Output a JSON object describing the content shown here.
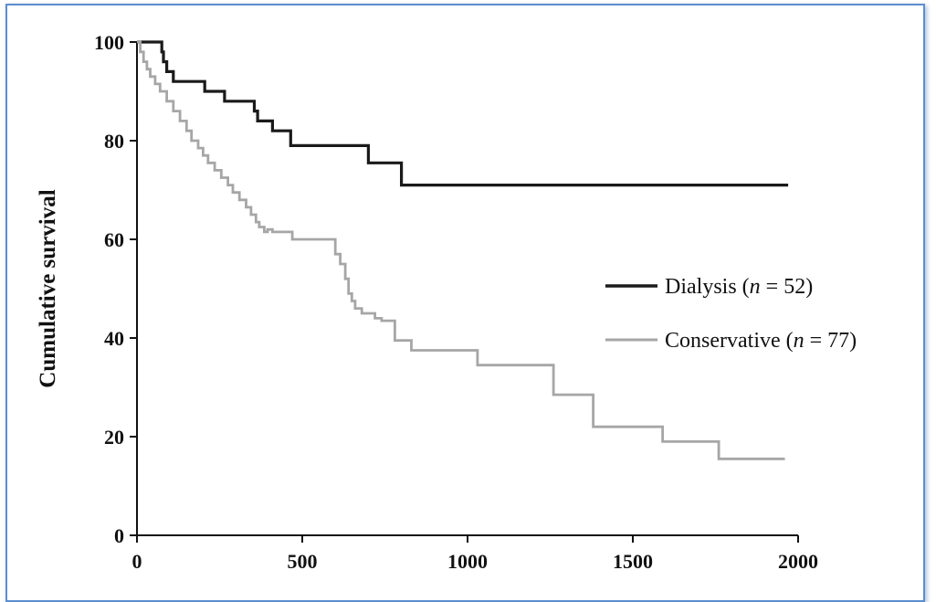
{
  "chart_data": {
    "type": "line",
    "title": "",
    "xlabel": "",
    "ylabel": "Cumulative survival",
    "xlim": [
      0,
      2000
    ],
    "ylim": [
      0,
      100
    ],
    "xticks": [
      0,
      500,
      1000,
      1500,
      2000
    ],
    "yticks": [
      0,
      20,
      40,
      60,
      80,
      100
    ],
    "grid": false,
    "legend_position": "right-middle",
    "step": true,
    "series": [
      {
        "name": "Dialysis (n = 52)",
        "legend_main": "Dialysis (",
        "legend_n": "n",
        "legend_rest": " = 52)",
        "color": "#1a1a1a",
        "x": [
          0,
          70,
          75,
          80,
          90,
          110,
          150,
          195,
          205,
          265,
          280,
          340,
          355,
          365,
          395,
          410,
          450,
          465,
          690,
          700,
          790,
          800,
          1970
        ],
        "y": [
          100,
          100,
          98,
          96,
          94,
          92,
          92,
          92,
          90,
          88,
          88,
          88,
          86,
          84,
          84,
          82,
          82,
          79,
          79,
          75.5,
          75.5,
          71,
          71
        ]
      },
      {
        "name": "Conservative (n = 77)",
        "legend_main": "Conservative (",
        "legend_n": "n",
        "legend_rest": " = 77)",
        "color": "#a6a6a6",
        "x": [
          0,
          10,
          20,
          30,
          40,
          55,
          70,
          90,
          110,
          130,
          150,
          165,
          185,
          200,
          215,
          235,
          255,
          275,
          290,
          310,
          330,
          345,
          360,
          370,
          385,
          395,
          410,
          420,
          440,
          470,
          580,
          600,
          615,
          630,
          640,
          650,
          660,
          680,
          720,
          740,
          780,
          830,
          1030,
          1250,
          1260,
          1370,
          1380,
          1580,
          1590,
          1750,
          1760,
          1960
        ],
        "y": [
          100,
          98,
          96,
          94.5,
          93,
          91.5,
          90,
          88,
          86,
          84,
          82,
          80,
          78.5,
          77,
          75.5,
          74,
          72.5,
          71,
          69.5,
          68,
          66.5,
          65,
          63.5,
          62.5,
          61.5,
          62,
          61.5,
          61.5,
          61.5,
          60,
          60,
          57,
          55,
          52,
          49,
          47.5,
          46,
          45,
          44,
          43.5,
          39.5,
          37.5,
          34.5,
          34.5,
          28.5,
          28.5,
          22,
          22,
          19,
          19,
          15.5,
          15.5
        ]
      }
    ]
  }
}
